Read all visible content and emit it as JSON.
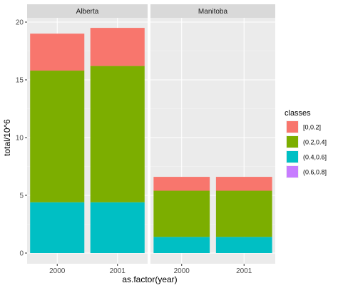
{
  "chart_data": {
    "type": "bar",
    "stacked": true,
    "facet_by": "province",
    "facets": [
      "Alberta",
      "Manitoba"
    ],
    "categories": [
      "2000",
      "2001"
    ],
    "xlabel": "as.factor(year)",
    "ylabel": "total/10^6",
    "ylim": [
      0,
      20
    ],
    "yticks": [
      0,
      5,
      10,
      15,
      20
    ],
    "grid": true,
    "legend": {
      "title": "classes",
      "placement": "right",
      "entries": [
        {
          "label": "[0,0.2]",
          "color": "#F8766D"
        },
        {
          "label": "(0.2,0.4]",
          "color": "#7CAE00"
        },
        {
          "label": "(0.4,0.6]",
          "color": "#00BFC4"
        },
        {
          "label": "(0.6,0.8]",
          "color": "#C77CFF"
        }
      ]
    },
    "series": [
      {
        "name": "[0,0.2]",
        "color": "#F8766D",
        "values": {
          "Alberta": [
            3.2,
            3.3
          ],
          "Manitoba": [
            1.2,
            1.2
          ]
        }
      },
      {
        "name": "(0.2,0.4]",
        "color": "#7CAE00",
        "values": {
          "Alberta": [
            11.4,
            11.8
          ],
          "Manitoba": [
            4.0,
            4.0
          ]
        }
      },
      {
        "name": "(0.4,0.6]",
        "color": "#00BFC4",
        "values": {
          "Alberta": [
            4.4,
            4.4
          ],
          "Manitoba": [
            1.4,
            1.4
          ]
        }
      },
      {
        "name": "(0.6,0.8]",
        "color": "#C77CFF",
        "values": {
          "Alberta": [
            0,
            0
          ],
          "Manitoba": [
            0,
            0
          ]
        }
      }
    ],
    "stack_order": [
      "(0.4,0.6]",
      "(0.2,0.4]",
      "[0,0.2]"
    ]
  }
}
